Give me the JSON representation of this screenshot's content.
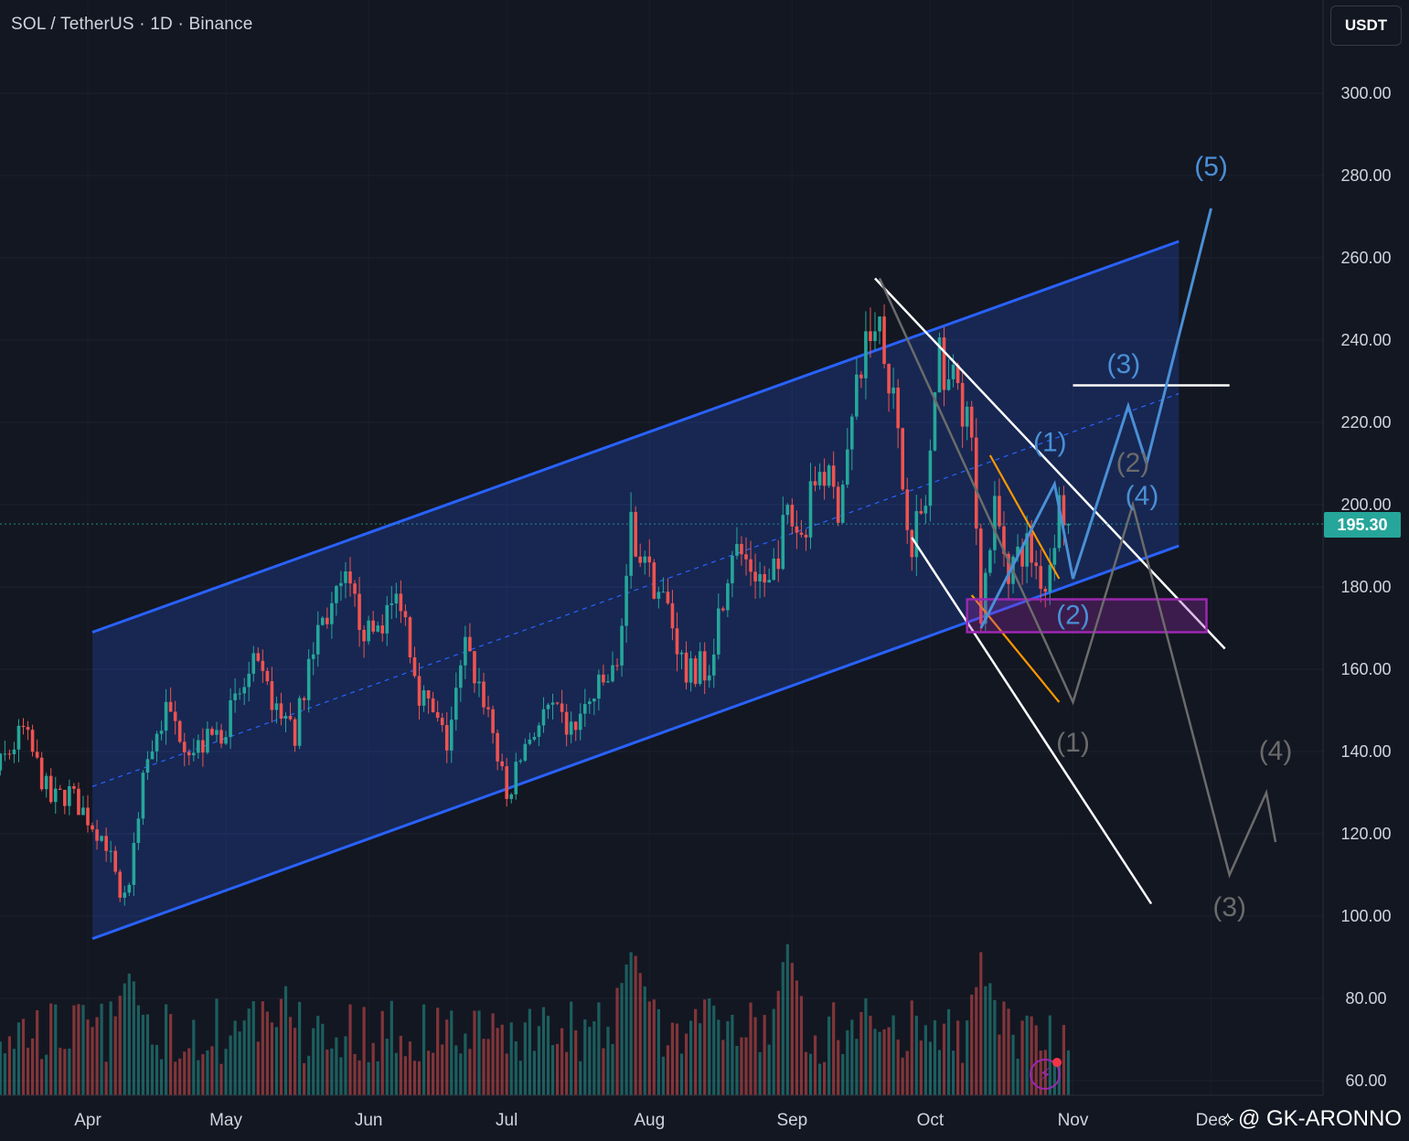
{
  "header": {
    "title": "SOL / TetherUS · 1D · Binance",
    "currency_label": "USDT"
  },
  "current_price": "195.30",
  "watermark": {
    "text": "@ GK-ARONNO",
    "logo": "tradingview-icon"
  },
  "colors": {
    "bg": "#131722",
    "up": "#26a69a",
    "down": "#ef5350",
    "channel": "#2962ff",
    "projection": "#4a8fd6",
    "alt_projection": "#6b6b6b",
    "zone": "#9c27b0",
    "target": "#ffffff",
    "subchannel": "#ff9800"
  },
  "chart_data": {
    "type": "candlestick",
    "y_axis": {
      "min": 60,
      "max": 300,
      "ticks": [
        60,
        80,
        100,
        120,
        140,
        160,
        180,
        200,
        220,
        240,
        260,
        280,
        300
      ],
      "tick_labels": [
        "60.00",
        "80.00",
        "100.00",
        "120.00",
        "140.00",
        "160.00",
        "180.00",
        "200.00",
        "220.00",
        "240.00",
        "260.00",
        "280.00",
        "300.00"
      ]
    },
    "x_axis": {
      "labels": [
        "Apr",
        "May",
        "Jun",
        "Jul",
        "Aug",
        "Sep",
        "Oct",
        "Nov",
        "Dec"
      ],
      "label_dates": [
        "2024-04-01",
        "2024-05-01",
        "2024-06-01",
        "2024-07-01",
        "2024-08-01",
        "2024-09-01",
        "2024-10-01",
        "2024-11-01",
        "2024-12-01"
      ]
    },
    "price_path": [
      [
        "2024-03-01",
        125
      ],
      [
        "2024-03-12",
        135
      ],
      [
        "2024-03-18",
        145
      ],
      [
        "2024-03-24",
        128
      ],
      [
        "2024-03-28",
        130
      ],
      [
        "2024-04-05",
        118
      ],
      [
        "2024-04-08",
        105
      ],
      [
        "2024-04-10",
        108
      ],
      [
        "2024-04-13",
        135
      ],
      [
        "2024-04-18",
        150
      ],
      [
        "2024-04-24",
        140
      ],
      [
        "2024-04-30",
        145
      ],
      [
        "2024-05-07",
        160
      ],
      [
        "2024-05-14",
        148
      ],
      [
        "2024-05-16",
        145
      ],
      [
        "2024-05-21",
        170
      ],
      [
        "2024-05-27",
        180
      ],
      [
        "2024-06-01",
        168
      ],
      [
        "2024-06-06",
        175
      ],
      [
        "2024-06-08",
        178
      ],
      [
        "2024-06-12",
        155
      ],
      [
        "2024-06-18",
        142
      ],
      [
        "2024-06-22",
        165
      ],
      [
        "2024-06-27",
        150
      ],
      [
        "2024-07-01",
        128
      ],
      [
        "2024-07-05",
        142
      ],
      [
        "2024-07-10",
        150
      ],
      [
        "2024-07-15",
        145
      ],
      [
        "2024-07-21",
        155
      ],
      [
        "2024-07-25",
        160
      ],
      [
        "2024-07-28",
        195
      ],
      [
        "2024-07-31",
        185
      ],
      [
        "2024-08-05",
        175
      ],
      [
        "2024-08-09",
        158
      ],
      [
        "2024-08-14",
        162
      ],
      [
        "2024-08-19",
        190
      ],
      [
        "2024-08-23",
        185
      ],
      [
        "2024-08-27",
        180
      ],
      [
        "2024-08-31",
        198
      ],
      [
        "2024-09-03",
        192
      ],
      [
        "2024-09-07",
        210
      ],
      [
        "2024-09-11",
        200
      ],
      [
        "2024-09-14",
        220
      ],
      [
        "2024-09-17",
        240
      ],
      [
        "2024-09-20",
        245
      ],
      [
        "2024-09-23",
        225
      ],
      [
        "2024-09-25",
        205
      ],
      [
        "2024-09-27",
        192
      ],
      [
        "2024-09-30",
        200
      ],
      [
        "2024-10-03",
        235
      ],
      [
        "2024-10-07",
        228
      ],
      [
        "2024-10-10",
        215
      ],
      [
        "2024-10-12",
        175
      ],
      [
        "2024-10-15",
        198
      ],
      [
        "2024-10-18",
        185
      ],
      [
        "2024-10-22",
        190
      ],
      [
        "2024-10-26",
        180
      ],
      [
        "2024-10-29",
        200
      ],
      [
        "2024-10-31",
        195.3
      ]
    ],
    "volume_peaks": [
      [
        "2024-04-10",
        92
      ],
      [
        "2024-05-14",
        85
      ],
      [
        "2024-07-28",
        95
      ],
      [
        "2024-08-14",
        85
      ],
      [
        "2024-08-31",
        95
      ],
      [
        "2024-09-17",
        80
      ],
      [
        "2024-10-12",
        92
      ]
    ],
    "ascending_channel": {
      "upper": [
        [
          "2024-04-02",
          169
        ],
        [
          "2024-11-24",
          264
        ]
      ],
      "lower": [
        [
          "2024-04-02",
          94.5
        ],
        [
          "2024-11-24",
          190
        ]
      ],
      "mid": [
        [
          "2024-04-02",
          131.5
        ],
        [
          "2024-11-24",
          227
        ]
      ]
    },
    "descending_channel": {
      "upper": [
        [
          "2024-09-19",
          255
        ],
        [
          "2024-12-04",
          165
        ]
      ],
      "lower": [
        [
          "2024-09-27",
          192
        ],
        [
          "2024-11-18",
          103
        ]
      ]
    },
    "sub_channel": {
      "upper": [
        [
          "2024-10-14",
          212
        ],
        [
          "2024-10-29",
          182
        ]
      ],
      "lower": [
        [
          "2024-10-10",
          178
        ],
        [
          "2024-10-29",
          152
        ]
      ]
    },
    "support_zone": {
      "from": "2024-10-09",
      "to": "2024-11-30",
      "low": 169,
      "high": 177
    },
    "target_line": {
      "from": "2024-11-01",
      "to": "2024-12-05",
      "price": 229
    },
    "bullish_wave_path": [
      [
        "2024-10-12",
        170
      ],
      [
        "2024-10-28",
        205
      ],
      [
        "2024-11-01",
        182
      ],
      [
        "2024-11-13",
        224
      ],
      [
        "2024-11-17",
        210
      ],
      [
        "2024-12-01",
        272
      ]
    ],
    "bearish_wave_path": [
      [
        "2024-09-20",
        255
      ],
      [
        "2024-11-01",
        152
      ],
      [
        "2024-11-14",
        200
      ],
      [
        "2024-12-05",
        110
      ],
      [
        "2024-12-13",
        130
      ],
      [
        "2024-12-15",
        118
      ]
    ],
    "wave_labels": [
      {
        "text": "(5)",
        "date": "2024-12-01",
        "price": 280,
        "series": "bullish"
      },
      {
        "text": "(3)",
        "date": "2024-11-12",
        "price": 232,
        "series": "bullish"
      },
      {
        "text": "(1)",
        "date": "2024-10-27",
        "price": 213,
        "series": "bullish"
      },
      {
        "text": "(4)",
        "date": "2024-11-16",
        "price": 200,
        "series": "bullish"
      },
      {
        "text": "(2)",
        "date": "2024-11-01",
        "price": 171,
        "series": "bullish"
      },
      {
        "text": "(2)",
        "date": "2024-11-14",
        "price": 208,
        "series": "bearish"
      },
      {
        "text": "(1)",
        "date": "2024-11-01",
        "price": 140,
        "series": "bearish"
      },
      {
        "text": "(4)",
        "date": "2024-12-15",
        "price": 138,
        "series": "bearish"
      },
      {
        "text": "(3)",
        "date": "2024-12-05",
        "price": 100,
        "series": "bearish"
      }
    ]
  }
}
